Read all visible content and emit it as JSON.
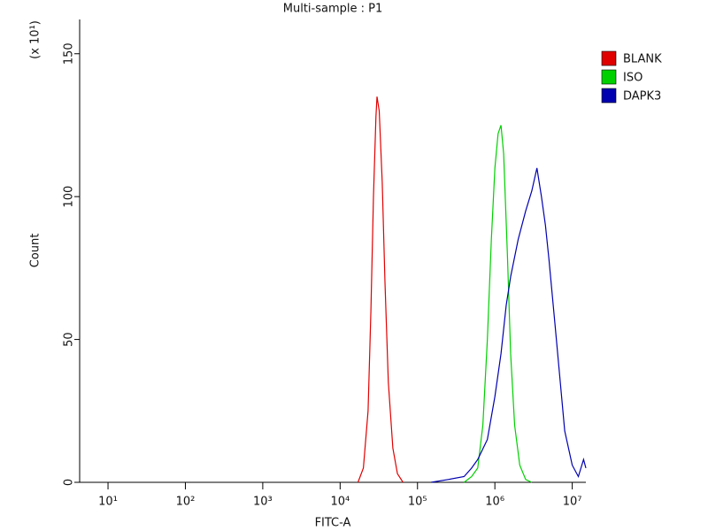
{
  "chart_data": {
    "type": "line",
    "title": "Multi-sample : P1",
    "x_label": "FITC-A",
    "y_label": "Count",
    "y_multiplier": "(x 10¹)",
    "xscale": "log",
    "legend": "right",
    "xlim": [
      4.3,
      15000000
    ],
    "ylim": [
      0,
      162
    ],
    "xticks": [
      {
        "value": 10,
        "label": "10¹"
      },
      {
        "value": 100,
        "label": "10²"
      },
      {
        "value": 1000,
        "label": "10³"
      },
      {
        "value": 10000,
        "label": "10⁴"
      },
      {
        "value": 100000,
        "label": "10⁵"
      },
      {
        "value": 1000000,
        "label": "10⁶"
      },
      {
        "value": 10000000,
        "label": "10⁷"
      }
    ],
    "yticks": [
      0,
      50,
      100,
      150
    ],
    "series": [
      {
        "name": "BLANK",
        "color": "#e00000",
        "x": [
          17000,
          20000,
          23000,
          25000,
          27000,
          29000,
          30000,
          32000,
          35000,
          38000,
          42000,
          48000,
          55000,
          65000
        ],
        "values": [
          0,
          5,
          25,
          60,
          100,
          128,
          135,
          130,
          105,
          70,
          35,
          12,
          3,
          0
        ]
      },
      {
        "name": "ISO",
        "color": "#00d000",
        "x": [
          400000,
          500000,
          600000,
          700000,
          800000,
          900000,
          1000000,
          1100000,
          1200000,
          1300000,
          1450000,
          1600000,
          1800000,
          2100000,
          2500000,
          3000000
        ],
        "values": [
          0,
          2,
          5,
          20,
          50,
          85,
          110,
          122,
          125,
          115,
          80,
          45,
          20,
          6,
          1,
          0
        ]
      },
      {
        "name": "DAPK3",
        "color": "#0000b0",
        "x": [
          150000,
          250000,
          400000,
          500000,
          600000,
          800000,
          1000000,
          1200000,
          1400000,
          1600000,
          2000000,
          2500000,
          3000000,
          3500000,
          4000000,
          4500000,
          5000000,
          6000000,
          7000000,
          8000000,
          10000000,
          12000000,
          14000000,
          15000000
        ],
        "values": [
          0,
          1,
          2,
          5,
          8,
          15,
          30,
          45,
          62,
          72,
          85,
          95,
          102,
          110,
          100,
          90,
          78,
          55,
          35,
          18,
          6,
          2,
          8,
          5
        ]
      }
    ]
  }
}
